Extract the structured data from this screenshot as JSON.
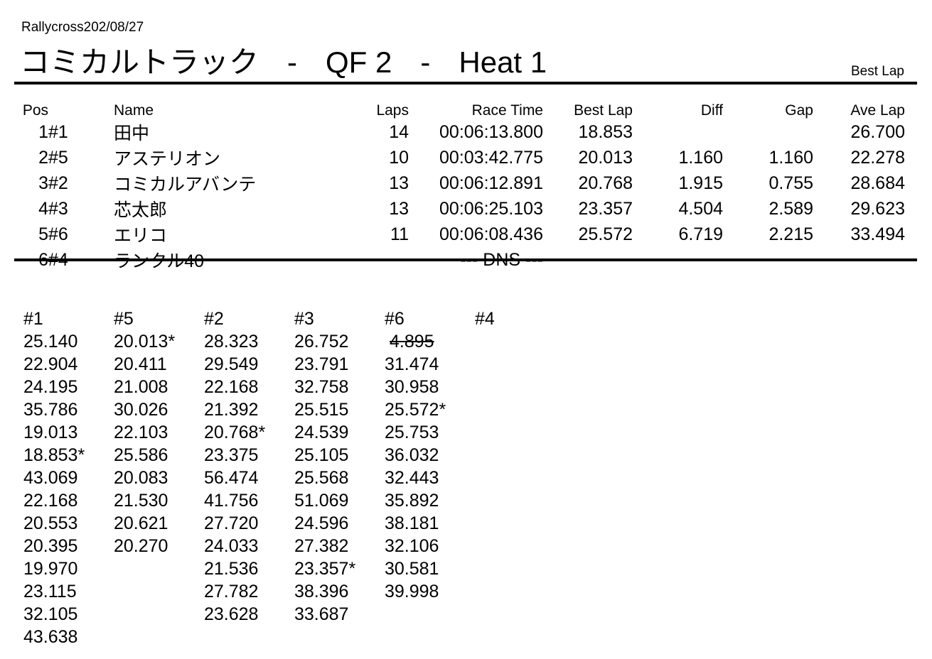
{
  "header": {
    "date": "Rallycross202/08/27",
    "title_parts": [
      "コミカルトラック",
      "-",
      "QF 2",
      "-",
      "Heat 1"
    ],
    "best_lap_label": "Best Lap"
  },
  "results": {
    "columns": {
      "pos": "Pos",
      "name": "Name",
      "laps": "Laps",
      "race_time": "Race Time",
      "best_lap": "Best Lap",
      "diff": "Diff",
      "gap": "Gap",
      "ave_lap": "Ave Lap"
    },
    "rows": [
      {
        "pos": "1",
        "car": "#1",
        "name": "田中",
        "laps": "14",
        "race_time": "00:06:13.800",
        "best_lap": "18.853",
        "diff": "",
        "gap": "",
        "ave_lap": "26.700"
      },
      {
        "pos": "2",
        "car": "#5",
        "name": "アステリオン",
        "laps": "10",
        "race_time": "00:03:42.775",
        "best_lap": "20.013",
        "diff": "1.160",
        "gap": "1.160",
        "ave_lap": "22.278"
      },
      {
        "pos": "3",
        "car": "#2",
        "name": "コミカルアバンテ",
        "laps": "13",
        "race_time": "00:06:12.891",
        "best_lap": "20.768",
        "diff": "1.915",
        "gap": "0.755",
        "ave_lap": "28.684"
      },
      {
        "pos": "4",
        "car": "#3",
        "name": "芯太郎",
        "laps": "13",
        "race_time": "00:06:25.103",
        "best_lap": "23.357",
        "diff": "4.504",
        "gap": "2.589",
        "ave_lap": "29.623"
      },
      {
        "pos": "5",
        "car": "#6",
        "name": "エリコ",
        "laps": "11",
        "race_time": "00:06:08.436",
        "best_lap": "25.572",
        "diff": "6.719",
        "gap": "2.215",
        "ave_lap": "33.494"
      },
      {
        "pos": "6",
        "car": "#4",
        "name": "ランクル40",
        "laps": "",
        "race_time": "--- DNS ---",
        "best_lap": "",
        "diff": "",
        "gap": "",
        "ave_lap": ""
      }
    ]
  },
  "lap_chart": {
    "columns": [
      {
        "car": "#1",
        "times": [
          "25.140",
          "22.904",
          "24.195",
          "35.786",
          "19.013",
          "18.853*",
          "43.069",
          "22.168",
          "20.553",
          "20.395",
          "19.970",
          "23.115",
          "32.105",
          "43.638"
        ]
      },
      {
        "car": "#5",
        "times": [
          "20.013*",
          "20.411",
          "21.008",
          "30.026",
          "22.103",
          "25.586",
          "20.083",
          "21.530",
          "20.621",
          "20.270"
        ]
      },
      {
        "car": "#2",
        "times": [
          "28.323",
          "29.549",
          "22.168",
          "21.392",
          "20.768*",
          "23.375",
          "56.474",
          "41.756",
          "27.720",
          "24.033",
          "21.536",
          "27.782",
          "23.628"
        ]
      },
      {
        "car": "#3",
        "times": [
          "26.752",
          "23.791",
          "32.758",
          "25.515",
          "24.539",
          "25.105",
          "25.568",
          "51.069",
          "24.596",
          "27.382",
          "23.357*",
          "38.396",
          "33.687"
        ]
      },
      {
        "car": "#6",
        "times": [
          "4.895",
          "31.474",
          "30.958",
          "25.572*",
          "25.753",
          "36.032",
          "32.443",
          "35.892",
          "38.181",
          "32.106",
          "30.581",
          "39.998"
        ],
        "struck_index": 0
      },
      {
        "car": "#4",
        "times": []
      }
    ]
  }
}
